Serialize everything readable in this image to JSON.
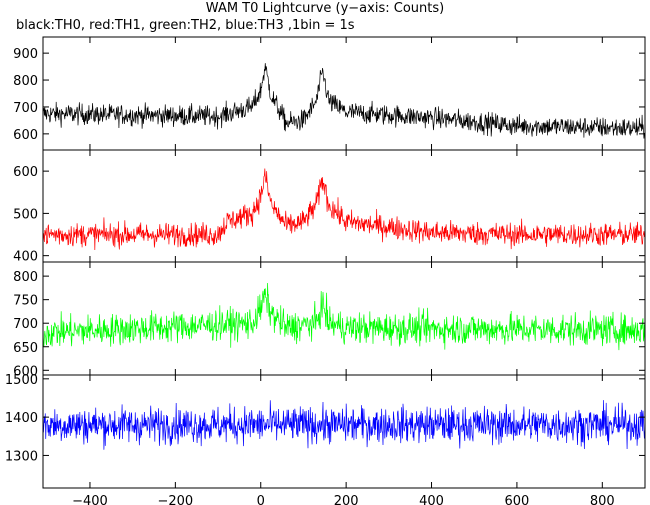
{
  "chart_data": {
    "type": "line",
    "title": "WAM T0 Lightcurve (y−axis: Counts)",
    "subtitle": "black:TH0, red:TH1, green:TH2, blue:TH3 ,1bin = 1s",
    "xlim": [
      -510,
      900
    ],
    "x_ticks": [
      -400,
      -200,
      0,
      200,
      400,
      600,
      800
    ],
    "x_tick_labels": [
      "−400",
      "−200",
      "0",
      "200",
      "400",
      "600",
      "800"
    ],
    "bin_seconds": 1,
    "panels": [
      {
        "name": "TH0",
        "color": "#000000",
        "ylim": [
          540,
          960
        ],
        "y_ticks": [
          600,
          700,
          800,
          900
        ],
        "baseline": [
          [
            -510,
            675
          ],
          [
            -100,
            665
          ],
          [
            -20,
            700
          ],
          [
            0,
            760
          ],
          [
            10,
            850
          ],
          [
            25,
            740
          ],
          [
            60,
            640
          ],
          [
            100,
            650
          ],
          [
            130,
            720
          ],
          [
            145,
            830
          ],
          [
            160,
            720
          ],
          [
            200,
            680
          ],
          [
            400,
            660
          ],
          [
            600,
            630
          ],
          [
            900,
            620
          ]
        ],
        "noise": 70
      },
      {
        "name": "TH1",
        "color": "#ff0000",
        "ylim": [
          385,
          650
        ],
        "y_ticks": [
          400,
          500,
          600
        ],
        "baseline": [
          [
            -510,
            450
          ],
          [
            -100,
            450
          ],
          [
            -80,
            480
          ],
          [
            -20,
            500
          ],
          [
            0,
            540
          ],
          [
            10,
            590
          ],
          [
            25,
            520
          ],
          [
            60,
            470
          ],
          [
            100,
            480
          ],
          [
            130,
            520
          ],
          [
            145,
            580
          ],
          [
            160,
            520
          ],
          [
            200,
            480
          ],
          [
            400,
            455
          ],
          [
            600,
            450
          ],
          [
            900,
            450
          ]
        ],
        "noise": 50
      },
      {
        "name": "TH2",
        "color": "#00ff00",
        "ylim": [
          590,
          830
        ],
        "y_ticks": [
          600,
          650,
          700,
          750,
          800
        ],
        "baseline": [
          [
            -510,
            680
          ],
          [
            -20,
            700
          ],
          [
            0,
            730
          ],
          [
            10,
            760
          ],
          [
            25,
            720
          ],
          [
            60,
            690
          ],
          [
            130,
            700
          ],
          [
            145,
            740
          ],
          [
            160,
            700
          ],
          [
            200,
            690
          ],
          [
            900,
            685
          ]
        ],
        "noise": 60
      },
      {
        "name": "TH3",
        "color": "#0000ff",
        "ylim": [
          1215,
          1510
        ],
        "y_ticks": [
          1300,
          1400,
          1500
        ],
        "baseline": [
          [
            -510,
            1380
          ],
          [
            900,
            1380
          ]
        ],
        "noise": 85
      }
    ]
  }
}
